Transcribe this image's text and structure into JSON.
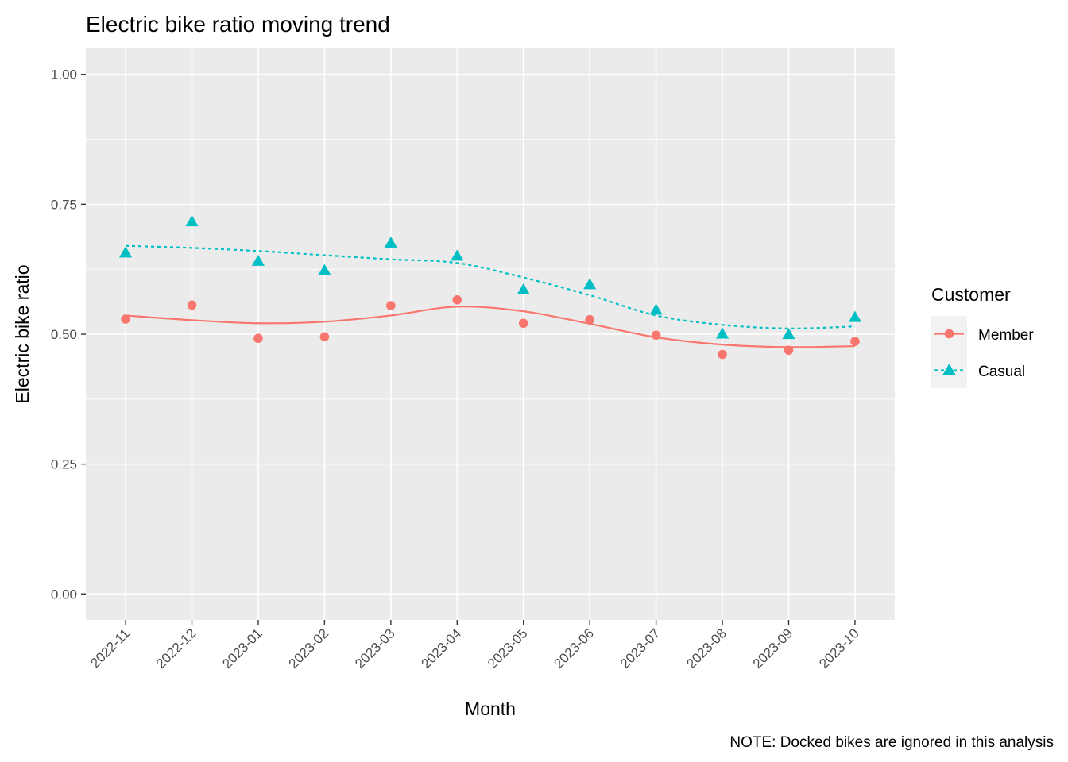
{
  "chart_data": {
    "type": "line",
    "title": "Electric bike ratio moving trend",
    "xlabel": "Month",
    "ylabel": "Electric bike ratio",
    "caption": "NOTE: Docked bikes are ignored in this analysis",
    "categories": [
      "2022-11",
      "2022-12",
      "2023-01",
      "2023-02",
      "2023-03",
      "2023-04",
      "2023-05",
      "2023-06",
      "2023-07",
      "2023-08",
      "2023-09",
      "2023-10"
    ],
    "ylim": [
      -0.05,
      1.05
    ],
    "yticks": [
      0.0,
      0.25,
      0.5,
      0.75,
      1.0
    ],
    "ytick_labels": [
      "0.00",
      "0.25",
      "0.50",
      "0.75",
      "1.00"
    ],
    "grid": true,
    "legend": {
      "title": "Customer",
      "position": "right"
    },
    "series": [
      {
        "name": "Member",
        "color": "#F8766D",
        "marker": "circle",
        "line": "solid",
        "points": [
          0.529,
          0.556,
          0.492,
          0.495,
          0.555,
          0.566,
          0.521,
          0.528,
          0.498,
          0.461,
          0.469,
          0.486
        ],
        "trend": [
          0.536,
          0.527,
          0.521,
          0.524,
          0.536,
          0.553,
          0.544,
          0.52,
          0.494,
          0.48,
          0.475,
          0.477
        ]
      },
      {
        "name": "Casual",
        "color": "#00BFC4",
        "marker": "triangle",
        "line": "dashed",
        "points": [
          0.656,
          0.716,
          0.64,
          0.622,
          0.675,
          0.65,
          0.585,
          0.595,
          0.546,
          0.5,
          0.499,
          0.532
        ],
        "trend": [
          0.67,
          0.666,
          0.66,
          0.652,
          0.644,
          0.637,
          0.609,
          0.575,
          0.536,
          0.518,
          0.511,
          0.515
        ]
      }
    ]
  }
}
